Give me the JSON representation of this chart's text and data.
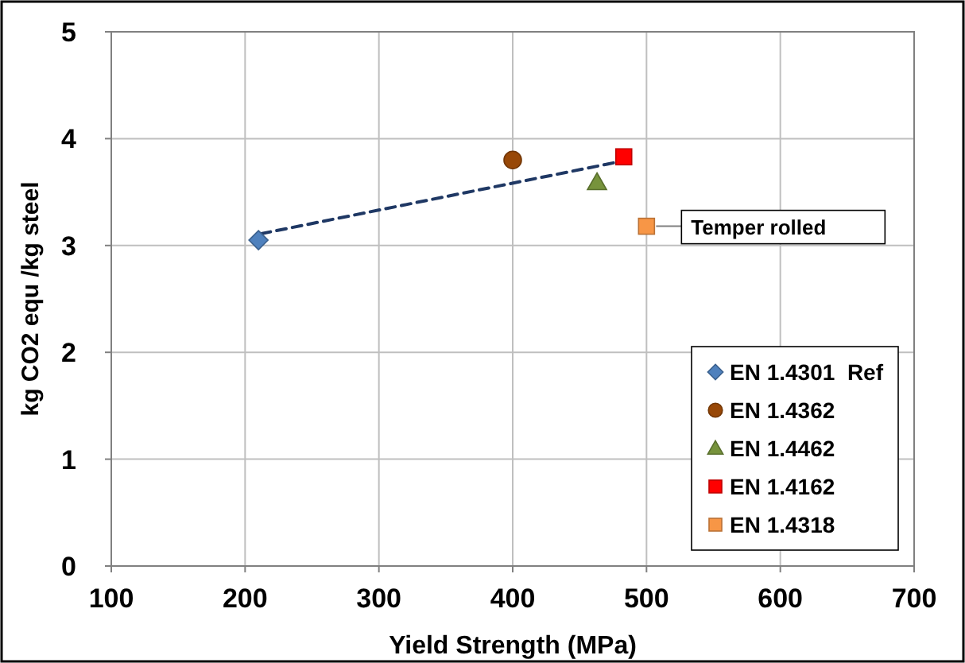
{
  "chart_data": {
    "type": "scatter",
    "xlabel": "Yield Strength (MPa)",
    "ylabel": "kg CO2 equ /kg steel",
    "xlim": [
      100,
      700
    ],
    "xticks": [
      100,
      200,
      300,
      400,
      500,
      600,
      700
    ],
    "ylim": [
      0,
      5
    ],
    "yticks": [
      0,
      1,
      2,
      3,
      4,
      5
    ],
    "grid": true,
    "legend": "bottom right",
    "series": [
      {
        "type": "line",
        "color": "#1f3864",
        "line_style": "dashed",
        "marker": "none",
        "x": [
          212,
          478
        ],
        "values": [
          3.11,
          3.78
        ]
      },
      {
        "name": "EN 1.4301  Ref",
        "color": "#4f81bd",
        "marker": "diamond",
        "x": [
          210
        ],
        "values": [
          3.05
        ]
      },
      {
        "name": "EN 1.4362",
        "color": "#984807",
        "marker": "circle",
        "x": [
          400
        ],
        "values": [
          3.8
        ]
      },
      {
        "name": "EN 1.4462",
        "color": "#77933c",
        "marker": "triangle",
        "x": [
          463
        ],
        "values": [
          3.59
        ]
      },
      {
        "name": "EN 1.4162",
        "color": "#ff0000",
        "marker": "square",
        "x": [
          483
        ],
        "values": [
          3.83
        ]
      },
      {
        "name": "EN 1.4318",
        "color": "#f79646",
        "marker": "square",
        "x": [
          500
        ],
        "values": [
          3.18
        ]
      }
    ],
    "annotations": [
      {
        "text": "Temper rolled",
        "x": 500,
        "y": 3.18
      }
    ]
  }
}
